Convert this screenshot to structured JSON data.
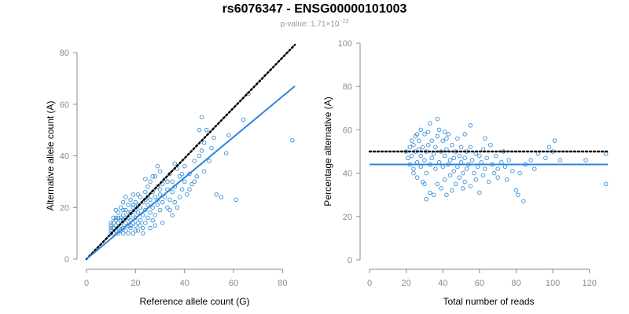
{
  "header": {
    "title": "rs6076347 - ENSG00000101003",
    "pvalue_prefix": "p-value: ",
    "pvalue_mantissa": "1.71×10",
    "pvalue_exponent": "−23"
  },
  "colors": {
    "points": "#3a8fd6",
    "fit_line": "#2b86e0",
    "reference_line": "#000000",
    "axis": "#8c8c8c",
    "tick_label": "#8c8c8c"
  },
  "chart_data": [
    {
      "type": "scatter",
      "title": "",
      "xlabel": "Reference allele count (G)",
      "ylabel": "Alternative allele count (A)",
      "xlim": [
        0,
        85
      ],
      "ylim": [
        0,
        80
      ],
      "xticks": [
        0,
        20,
        40,
        60,
        80
      ],
      "yticks": [
        0,
        20,
        40,
        60,
        80
      ],
      "grid": false,
      "reference_line": {
        "style": "dotted",
        "color": "#000000",
        "points": [
          [
            0,
            0
          ],
          [
            85,
            83
          ]
        ]
      },
      "fit_line": {
        "style": "solid",
        "color": "#2b86e0",
        "points": [
          [
            0,
            0
          ],
          [
            85,
            67
          ]
        ]
      },
      "points": [
        [
          10,
          10
        ],
        [
          10,
          11
        ],
        [
          10,
          12
        ],
        [
          10,
          13
        ],
        [
          10,
          14
        ],
        [
          11,
          10
        ],
        [
          11,
          12
        ],
        [
          11,
          14
        ],
        [
          12,
          11
        ],
        [
          12,
          13
        ],
        [
          12,
          15
        ],
        [
          12,
          16
        ],
        [
          13,
          10
        ],
        [
          13,
          12
        ],
        [
          13,
          14
        ],
        [
          13,
          18
        ],
        [
          14,
          11
        ],
        [
          14,
          13
        ],
        [
          14,
          16
        ],
        [
          14,
          20
        ],
        [
          15,
          10
        ],
        [
          15,
          12
        ],
        [
          15,
          15
        ],
        [
          15,
          17
        ],
        [
          15,
          22
        ],
        [
          16,
          11
        ],
        [
          16,
          14
        ],
        [
          16,
          19
        ],
        [
          16,
          24
        ],
        [
          17,
          10
        ],
        [
          17,
          13
        ],
        [
          17,
          16
        ],
        [
          17,
          21
        ],
        [
          18,
          12
        ],
        [
          18,
          15
        ],
        [
          18,
          18
        ],
        [
          18,
          23
        ],
        [
          19,
          14
        ],
        [
          19,
          17
        ],
        [
          19,
          20
        ],
        [
          19,
          25
        ],
        [
          20,
          11
        ],
        [
          20,
          13
        ],
        [
          20,
          16
        ],
        [
          20,
          19
        ],
        [
          20,
          22
        ],
        [
          21,
          14
        ],
        [
          21,
          18
        ],
        [
          21,
          21
        ],
        [
          22,
          15
        ],
        [
          22,
          20
        ],
        [
          22,
          24
        ],
        [
          23,
          12
        ],
        [
          23,
          17
        ],
        [
          23,
          22
        ],
        [
          24,
          14
        ],
        [
          24,
          19
        ],
        [
          24,
          26
        ],
        [
          25,
          16
        ],
        [
          25,
          21
        ],
        [
          25,
          28
        ],
        [
          26,
          18
        ],
        [
          26,
          23
        ],
        [
          26,
          30
        ],
        [
          27,
          15
        ],
        [
          27,
          20
        ],
        [
          27,
          26
        ],
        [
          28,
          17
        ],
        [
          28,
          24
        ],
        [
          28,
          32
        ],
        [
          29,
          21
        ],
        [
          29,
          28
        ],
        [
          30,
          19
        ],
        [
          30,
          25
        ],
        [
          30,
          34
        ],
        [
          31,
          22
        ],
        [
          31,
          29
        ],
        [
          32,
          24
        ],
        [
          32,
          31
        ],
        [
          33,
          20
        ],
        [
          33,
          27
        ],
        [
          34,
          23
        ],
        [
          34,
          33
        ],
        [
          35,
          26
        ],
        [
          35,
          30
        ],
        [
          36,
          22
        ],
        [
          36,
          28
        ],
        [
          37,
          35
        ],
        [
          38,
          24
        ],
        [
          38,
          32
        ],
        [
          39,
          27
        ],
        [
          40,
          30
        ],
        [
          40,
          36
        ],
        [
          41,
          25
        ],
        [
          42,
          33
        ],
        [
          43,
          29
        ],
        [
          44,
          38
        ],
        [
          45,
          32
        ],
        [
          46,
          40
        ],
        [
          46,
          50
        ],
        [
          47,
          55
        ],
        [
          48,
          34
        ],
        [
          48,
          45
        ],
        [
          49,
          50
        ],
        [
          50,
          38
        ],
        [
          51,
          43
        ],
        [
          52,
          47
        ],
        [
          53,
          25
        ],
        [
          55,
          24
        ],
        [
          57,
          41
        ],
        [
          58,
          48
        ],
        [
          61,
          23
        ],
        [
          64,
          54
        ],
        [
          66,
          64
        ],
        [
          84,
          46
        ],
        [
          24,
          31
        ],
        [
          29,
          36
        ],
        [
          33,
          30
        ],
        [
          21,
          11
        ],
        [
          23,
          10
        ],
        [
          19,
          10
        ],
        [
          35,
          17
        ],
        [
          37,
          20
        ],
        [
          31,
          14
        ],
        [
          28,
          13
        ],
        [
          26,
          12
        ],
        [
          18,
          13
        ],
        [
          16,
          16
        ],
        [
          22,
          13
        ],
        [
          24,
          23
        ],
        [
          27,
          32
        ],
        [
          30,
          27
        ],
        [
          34,
          19
        ],
        [
          36,
          37
        ],
        [
          39,
          33
        ],
        [
          42,
          27
        ],
        [
          44,
          30
        ],
        [
          47,
          42
        ],
        [
          14,
          15
        ],
        [
          15,
          19
        ],
        [
          13,
          16
        ],
        [
          11,
          16
        ],
        [
          12,
          19
        ],
        [
          17,
          18
        ],
        [
          19,
          21
        ],
        [
          21,
          25
        ],
        [
          25,
          24
        ],
        [
          29,
          23
        ]
      ]
    },
    {
      "type": "scatter",
      "title": "",
      "xlabel": "Total number of reads",
      "ylabel": "Percentage alternative (A)",
      "xlim": [
        0,
        130
      ],
      "ylim": [
        0,
        100
      ],
      "xticks": [
        0,
        20,
        40,
        60,
        80,
        100,
        120
      ],
      "yticks": [
        0,
        20,
        40,
        60,
        80,
        100
      ],
      "grid": false,
      "reference_line": {
        "style": "dotted",
        "color": "#000000",
        "y": 50
      },
      "fit_line": {
        "style": "solid",
        "color": "#2b86e0",
        "y": 44
      },
      "points": [
        [
          20,
          50
        ],
        [
          21,
          47
        ],
        [
          22,
          52
        ],
        [
          22,
          44
        ],
        [
          23,
          55
        ],
        [
          23,
          48
        ],
        [
          24,
          42
        ],
        [
          24,
          53
        ],
        [
          25,
          50
        ],
        [
          25,
          57
        ],
        [
          26,
          45
        ],
        [
          26,
          38
        ],
        [
          27,
          51
        ],
        [
          27,
          55
        ],
        [
          28,
          43
        ],
        [
          28,
          48
        ],
        [
          29,
          52
        ],
        [
          29,
          36
        ],
        [
          30,
          58
        ],
        [
          30,
          46
        ],
        [
          31,
          50
        ],
        [
          31,
          40
        ],
        [
          32,
          53
        ],
        [
          32,
          59
        ],
        [
          33,
          44
        ],
        [
          33,
          31
        ],
        [
          34,
          47
        ],
        [
          34,
          55
        ],
        [
          35,
          49
        ],
        [
          35,
          30
        ],
        [
          36,
          52
        ],
        [
          36,
          42
        ],
        [
          37,
          57
        ],
        [
          37,
          35
        ],
        [
          38,
          45
        ],
        [
          38,
          60
        ],
        [
          39,
          50
        ],
        [
          39,
          33
        ],
        [
          40,
          43
        ],
        [
          40,
          55
        ],
        [
          41,
          48
        ],
        [
          41,
          37
        ],
        [
          42,
          51
        ],
        [
          42,
          30
        ],
        [
          43,
          44
        ],
        [
          43,
          58
        ],
        [
          44,
          46
        ],
        [
          44,
          39
        ],
        [
          45,
          53
        ],
        [
          45,
          32
        ],
        [
          46,
          47
        ],
        [
          46,
          41
        ],
        [
          47,
          50
        ],
        [
          47,
          35
        ],
        [
          48,
          43
        ],
        [
          48,
          56
        ],
        [
          49,
          48
        ],
        [
          49,
          38
        ],
        [
          50,
          45
        ],
        [
          50,
          52
        ],
        [
          51,
          40
        ],
        [
          51,
          33
        ],
        [
          52,
          47
        ],
        [
          52,
          36
        ],
        [
          53,
          50
        ],
        [
          53,
          42
        ],
        [
          54,
          44
        ],
        [
          55,
          52
        ],
        [
          55,
          34
        ],
        [
          56,
          46
        ],
        [
          57,
          40
        ],
        [
          58,
          49
        ],
        [
          58,
          37
        ],
        [
          59,
          43
        ],
        [
          60,
          48
        ],
        [
          60,
          31
        ],
        [
          61,
          45
        ],
        [
          62,
          51
        ],
        [
          62,
          39
        ],
        [
          63,
          42
        ],
        [
          64,
          47
        ],
        [
          65,
          36
        ],
        [
          66,
          53
        ],
        [
          67,
          44
        ],
        [
          68,
          40
        ],
        [
          69,
          48
        ],
        [
          70,
          42
        ],
        [
          70,
          38
        ],
        [
          72,
          45
        ],
        [
          73,
          50
        ],
        [
          74,
          43
        ],
        [
          75,
          37
        ],
        [
          76,
          46
        ],
        [
          78,
          41
        ],
        [
          80,
          32
        ],
        [
          81,
          30
        ],
        [
          82,
          40
        ],
        [
          84,
          27
        ],
        [
          85,
          44
        ],
        [
          88,
          46
        ],
        [
          90,
          42
        ],
        [
          92,
          49
        ],
        [
          96,
          47
        ],
        [
          98,
          52
        ],
        [
          100,
          50
        ],
        [
          101,
          55
        ],
        [
          104,
          46
        ],
        [
          118,
          46
        ],
        [
          129,
          49
        ],
        [
          129,
          35
        ],
        [
          33,
          63
        ],
        [
          37,
          65
        ],
        [
          42,
          56
        ],
        [
          52,
          58
        ],
        [
          28,
          60
        ],
        [
          31,
          28
        ],
        [
          55,
          62
        ],
        [
          63,
          56
        ],
        [
          41,
          59
        ],
        [
          24,
          40
        ],
        [
          26,
          58
        ],
        [
          30,
          35
        ]
      ]
    }
  ]
}
